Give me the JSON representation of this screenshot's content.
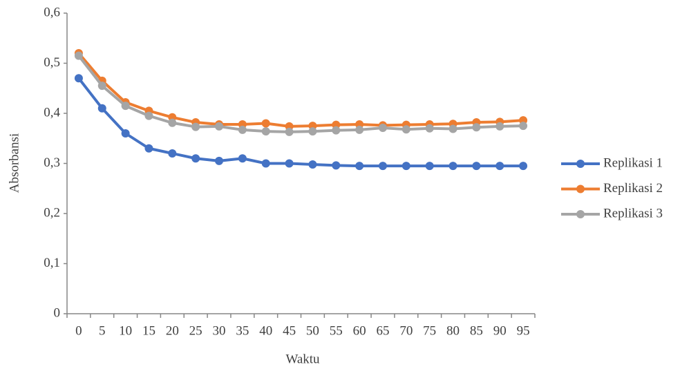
{
  "chart_data": {
    "type": "line",
    "x_label": "Waktu",
    "y_label": "Absorbansi",
    "categories": [
      "0",
      "5",
      "10",
      "15",
      "20",
      "25",
      "30",
      "35",
      "40",
      "45",
      "50",
      "55",
      "60",
      "65",
      "70",
      "75",
      "80",
      "85",
      "90",
      "95"
    ],
    "series": [
      {
        "name": "Replikasi 1",
        "color": "#4472c4",
        "values": [
          0.47,
          0.41,
          0.36,
          0.33,
          0.32,
          0.31,
          0.305,
          0.31,
          0.3,
          0.3,
          0.298,
          0.296,
          0.295,
          0.295,
          0.295,
          0.295,
          0.295,
          0.295,
          0.295,
          0.295
        ]
      },
      {
        "name": "Replikasi 2",
        "color": "#ed7d31",
        "values": [
          0.52,
          0.465,
          0.422,
          0.405,
          0.392,
          0.382,
          0.378,
          0.378,
          0.38,
          0.374,
          0.375,
          0.377,
          0.378,
          0.376,
          0.377,
          0.378,
          0.379,
          0.382,
          0.383,
          0.386
        ]
      },
      {
        "name": "Replikasi 3",
        "color": "#a5a5a5",
        "values": [
          0.515,
          0.455,
          0.415,
          0.395,
          0.381,
          0.373,
          0.374,
          0.367,
          0.364,
          0.363,
          0.364,
          0.366,
          0.367,
          0.371,
          0.368,
          0.37,
          0.369,
          0.372,
          0.374,
          0.375
        ]
      }
    ],
    "ylim": [
      0,
      0.6
    ],
    "yticks": [
      0,
      {
        "value": 0.1,
        "label": "0,1"
      },
      {
        "value": 0.2,
        "label": "0,2"
      },
      {
        "value": 0.3,
        "label": "0,3"
      },
      {
        "value": 0.4,
        "label": "0,4"
      },
      {
        "value": 0.5,
        "label": "0,5"
      },
      {
        "value": 0.6,
        "label": "0,6"
      }
    ],
    "grid": false,
    "legend": "right"
  }
}
